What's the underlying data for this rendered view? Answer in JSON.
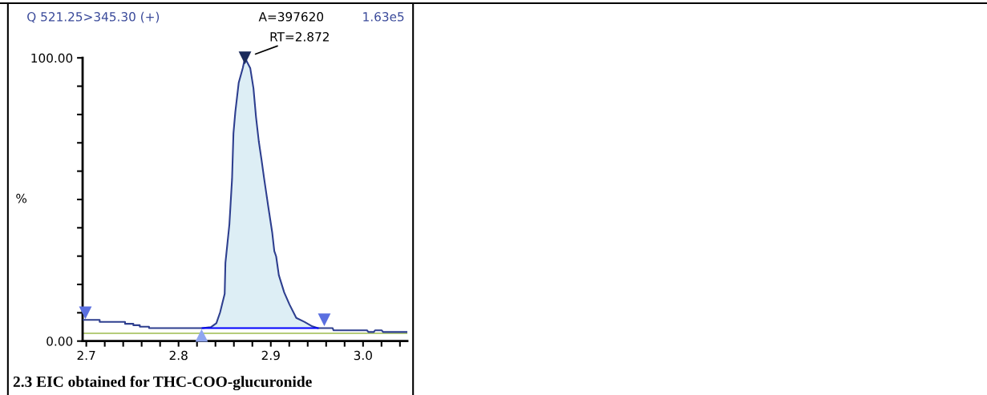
{
  "chart_data": {
    "type": "line",
    "title": "Q 521.25>345.30 (+)",
    "ylabel": "%",
    "annotations": [
      "A=397620",
      "1.63e5",
      {
        "text": "RT=2.872",
        "x": 2.872,
        "y": 100
      },
      "2.3 EIC obtained for THC-COO-glucuronide"
    ],
    "xlim": [
      2.696,
      3.048
    ],
    "ylim": [
      0,
      100
    ],
    "xticks": [
      {
        "value": 2.7,
        "label": "2.7"
      },
      {
        "value": 2.72,
        "label": null
      },
      {
        "value": 2.74,
        "label": null
      },
      {
        "value": 2.76,
        "label": null
      },
      {
        "value": 2.78,
        "label": null
      },
      {
        "value": 2.8,
        "label": "2.8"
      },
      {
        "value": 2.82,
        "label": null
      },
      {
        "value": 2.84,
        "label": null
      },
      {
        "value": 2.86,
        "label": null
      },
      {
        "value": 2.88,
        "label": null
      },
      {
        "value": 2.9,
        "label": "2.9"
      },
      {
        "value": 2.92,
        "label": null
      },
      {
        "value": 2.94,
        "label": null
      },
      {
        "value": 2.96,
        "label": null
      },
      {
        "value": 2.98,
        "label": null
      },
      {
        "value": 3.0,
        "label": "3.0"
      },
      {
        "value": 3.02,
        "label": null
      },
      {
        "value": 3.04,
        "label": null
      }
    ],
    "yticks": [
      {
        "value": 0,
        "label": "0.00"
      },
      {
        "value": 10,
        "label": null
      },
      {
        "value": 20,
        "label": null
      },
      {
        "value": 30,
        "label": null
      },
      {
        "value": 40,
        "label": null
      },
      {
        "value": 50,
        "label": null
      },
      {
        "value": 60,
        "label": null
      },
      {
        "value": 70,
        "label": null
      },
      {
        "value": 80,
        "label": null
      },
      {
        "value": 90,
        "label": null
      },
      {
        "value": 100,
        "label": "100.00"
      }
    ],
    "grid": false,
    "ref_lines": [
      {
        "axis": "y",
        "value": 2.75,
        "color": "#b5cc7a"
      }
    ],
    "series": [
      {
        "color": "#2e3f8f",
        "x": [
          2.697,
          2.7145,
          2.7145,
          2.742,
          2.742,
          2.751,
          2.751,
          2.758,
          2.758,
          2.768,
          2.768,
          2.826,
          2.835,
          2.841,
          2.845,
          2.85,
          2.8508,
          2.8551,
          2.858,
          2.8595,
          2.8615,
          2.8652,
          2.8696,
          2.872,
          2.8777,
          2.8812,
          2.884,
          2.887,
          2.89,
          2.8928,
          2.8971,
          2.9015,
          2.9038,
          2.9058,
          2.9087,
          2.9145,
          2.9203,
          2.9276,
          2.9363,
          2.945,
          2.951,
          2.967,
          2.968,
          3.0043,
          3.0058,
          3.0117,
          3.013,
          3.0203,
          3.0217,
          3.048
        ],
        "values": [
          7.5,
          7.5,
          6.8,
          6.8,
          6.1,
          6.1,
          5.6,
          5.6,
          5.1,
          5.1,
          4.6,
          4.6,
          4.9,
          6.3,
          10.1,
          16.7,
          27.6,
          41.2,
          57.3,
          73.3,
          80.8,
          91.2,
          96.4,
          100,
          96.4,
          89.3,
          79,
          70.5,
          63.9,
          57.3,
          47.8,
          38.4,
          31.8,
          29.9,
          23.3,
          17.2,
          12.9,
          8.2,
          6.8,
          5.2,
          4.6,
          4.6,
          3.8,
          3.8,
          3.2,
          3.2,
          3.8,
          3.8,
          3.2,
          3.2
        ]
      },
      {
        "color": "#0000ff",
        "x": [
          2.826,
          2.951
        ],
        "values": [
          4.6,
          4.6
        ]
      },
      {
        "type": "scatter",
        "marker": "triangle_down",
        "color": "#5a6fe0",
        "x": [
          2.699,
          2.958
        ],
        "values": [
          10.0,
          7.5
        ]
      },
      {
        "type": "scatter",
        "marker": "triangle",
        "color": "#8fa5f0",
        "x": [
          2.825
        ],
        "values": [
          2.0
        ]
      },
      {
        "type": "scatter",
        "marker": "triangle_down",
        "color": "#1a2a5a",
        "x": [
          2.872
        ],
        "values": [
          100
        ]
      }
    ]
  }
}
